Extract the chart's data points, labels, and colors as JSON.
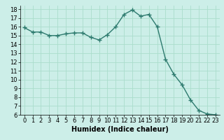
{
  "title": "",
  "xlabel": "Humidex (Indice chaleur)",
  "x": [
    0,
    1,
    2,
    3,
    4,
    5,
    6,
    7,
    8,
    9,
    10,
    11,
    12,
    13,
    14,
    15,
    16,
    17,
    18,
    19,
    20,
    21,
    22,
    23
  ],
  "y": [
    15.9,
    15.4,
    15.4,
    15.0,
    15.0,
    15.2,
    15.3,
    15.3,
    14.8,
    14.5,
    15.1,
    16.0,
    17.4,
    17.9,
    17.2,
    17.4,
    16.0,
    12.3,
    10.6,
    9.4,
    7.7,
    6.5,
    6.1,
    6.0
  ],
  "line_color": "#2d7a6e",
  "marker": "+",
  "markersize": 4,
  "markeredgewidth": 1.0,
  "linewidth": 1.0,
  "bg_color": "#cceee8",
  "grid_color": "#aaddcc",
  "xlim": [
    -0.5,
    23.5
  ],
  "ylim": [
    6,
    18.4
  ],
  "yticks": [
    6,
    7,
    8,
    9,
    10,
    11,
    12,
    13,
    14,
    15,
    16,
    17,
    18
  ],
  "xticks": [
    0,
    1,
    2,
    3,
    4,
    5,
    6,
    7,
    8,
    9,
    10,
    11,
    12,
    13,
    14,
    15,
    16,
    17,
    18,
    19,
    20,
    21,
    22,
    23
  ],
  "xlabel_fontsize": 7,
  "tick_fontsize": 6
}
